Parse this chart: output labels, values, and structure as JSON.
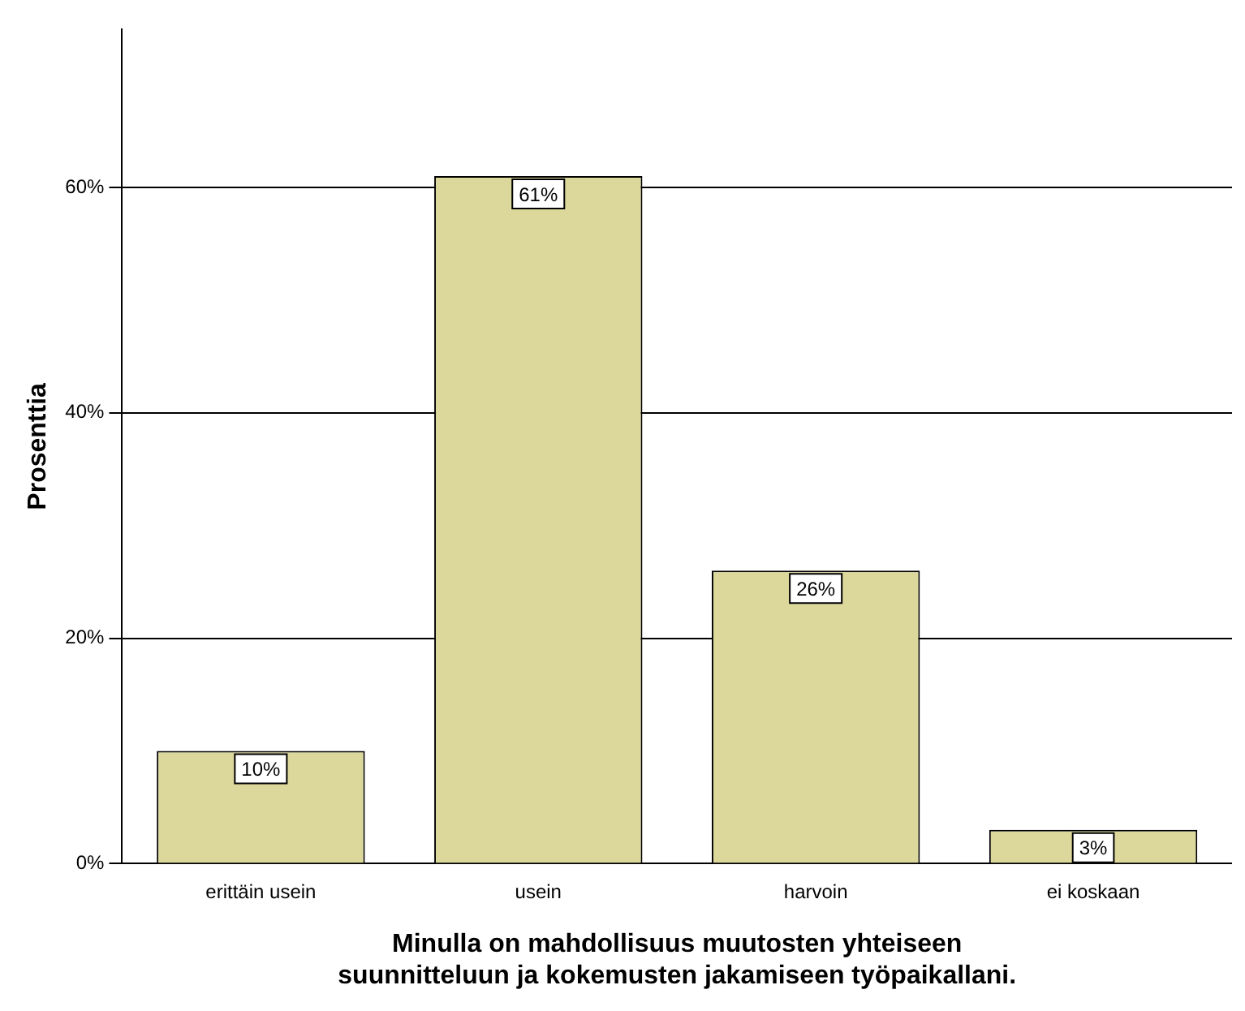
{
  "chart_data": {
    "type": "bar",
    "xlabel": "Minulla on mahdollisuus muutosten yhteiseen suunnitteluun ja kokemusten jakamiseen työpaikallani.",
    "ylabel": "Prosenttia",
    "categories": [
      "erittäin usein",
      "usein",
      "harvoin",
      "ei koskaan"
    ],
    "values": [
      10,
      61,
      26,
      3
    ],
    "value_labels": [
      "10%",
      "61%",
      "26%",
      "3%"
    ],
    "color": "#dcd89c",
    "ylim": [
      0,
      74
    ],
    "yticks": [
      {
        "value": 0,
        "label": "0%"
      },
      {
        "value": 20,
        "label": "20%"
      },
      {
        "value": 40,
        "label": "40%"
      },
      {
        "value": 60,
        "label": "60%"
      }
    ],
    "grid": "y"
  }
}
